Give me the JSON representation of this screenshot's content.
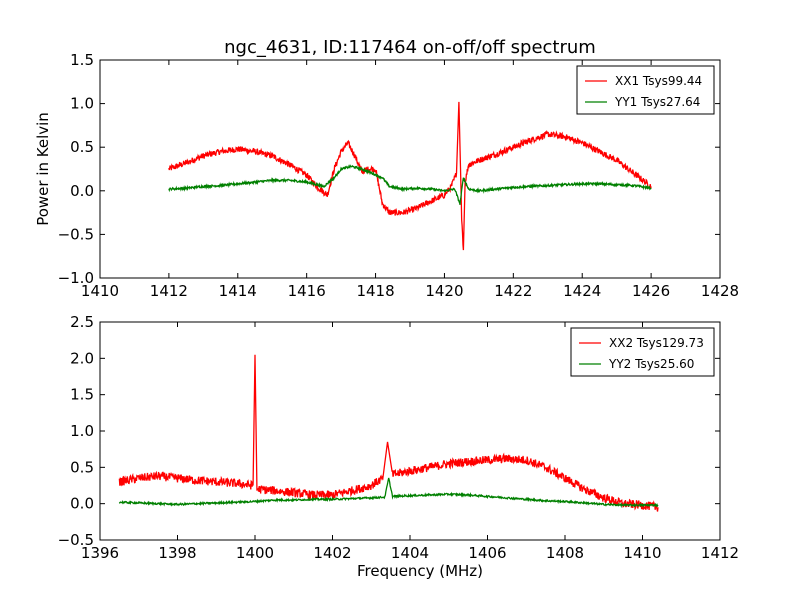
{
  "figure": {
    "title": "ngc_4631, ID:117464 on-off/off spectrum"
  },
  "colors": {
    "xx": "#ff0000",
    "yy": "#008000",
    "axis": "#000000",
    "background": "#ffffff"
  },
  "chart_data": [
    {
      "type": "line",
      "title": "ngc_4631, ID:117464 on-off/off spectrum",
      "xlabel": "",
      "ylabel": "Power in Kelvin",
      "xlim": [
        1410,
        1428
      ],
      "ylim": [
        -1.0,
        1.5
      ],
      "xticks": [
        1410,
        1412,
        1414,
        1416,
        1418,
        1420,
        1422,
        1424,
        1426,
        1428
      ],
      "xtick_labels": [
        "1410",
        "1412",
        "1414",
        "1416",
        "1418",
        "1420",
        "1422",
        "1424",
        "1426",
        "1428"
      ],
      "yticks": [
        -1.0,
        -0.5,
        0.0,
        0.5,
        1.0,
        1.5
      ],
      "ytick_labels": [
        "−1.0",
        "−0.5",
        "0.0",
        "0.5",
        "1.0",
        "1.5"
      ],
      "grid": false,
      "legend_position": "top-right",
      "series": [
        {
          "name": "XX1 Tsys99.44",
          "color": "#ff0000",
          "x": [
            1412.0,
            1412.5,
            1413.0,
            1413.5,
            1414.0,
            1414.5,
            1415.0,
            1415.5,
            1416.0,
            1416.3,
            1416.6,
            1416.8,
            1417.0,
            1417.2,
            1417.4,
            1417.6,
            1417.8,
            1418.0,
            1418.2,
            1418.4,
            1418.8,
            1419.2,
            1419.6,
            1420.0,
            1420.2,
            1420.35,
            1420.42,
            1420.5,
            1420.55,
            1420.6,
            1420.7,
            1421.0,
            1421.5,
            1422.0,
            1422.5,
            1423.0,
            1423.5,
            1424.0,
            1424.5,
            1425.0,
            1425.5,
            1426.0
          ],
          "y": [
            0.25,
            0.32,
            0.4,
            0.45,
            0.48,
            0.45,
            0.4,
            0.3,
            0.18,
            0.05,
            -0.05,
            0.25,
            0.45,
            0.55,
            0.4,
            0.22,
            0.25,
            0.25,
            -0.15,
            -0.25,
            -0.25,
            -0.2,
            -0.12,
            -0.05,
            0.05,
            0.2,
            1.02,
            -0.3,
            -0.68,
            0.1,
            0.3,
            0.35,
            0.42,
            0.5,
            0.58,
            0.65,
            0.62,
            0.55,
            0.45,
            0.35,
            0.2,
            0.05
          ]
        },
        {
          "name": "YY1 Tsys27.64",
          "color": "#008000",
          "x": [
            1412.0,
            1412.5,
            1413.0,
            1413.5,
            1414.0,
            1414.5,
            1415.0,
            1415.5,
            1416.0,
            1416.5,
            1416.8,
            1417.0,
            1417.3,
            1417.6,
            1417.9,
            1418.2,
            1418.4,
            1418.8,
            1419.2,
            1419.6,
            1420.0,
            1420.3,
            1420.45,
            1420.55,
            1420.7,
            1421.0,
            1421.5,
            1422.0,
            1422.5,
            1423.0,
            1423.5,
            1424.0,
            1424.5,
            1425.0,
            1425.5,
            1426.0
          ],
          "y": [
            0.02,
            0.03,
            0.05,
            0.06,
            0.08,
            0.1,
            0.12,
            0.12,
            0.1,
            0.05,
            0.15,
            0.25,
            0.28,
            0.25,
            0.2,
            0.15,
            0.05,
            0.02,
            0.03,
            0.02,
            0.0,
            0.02,
            -0.15,
            0.15,
            0.02,
            0.0,
            0.02,
            0.04,
            0.05,
            0.06,
            0.07,
            0.08,
            0.08,
            0.07,
            0.06,
            0.03
          ]
        }
      ]
    },
    {
      "type": "line",
      "title": "",
      "xlabel": "Frequency (MHz)",
      "ylabel": "",
      "xlim": [
        1396,
        1412
      ],
      "ylim": [
        -0.5,
        2.5
      ],
      "xticks": [
        1396,
        1398,
        1400,
        1402,
        1404,
        1406,
        1408,
        1410,
        1412
      ],
      "xtick_labels": [
        "1396",
        "1398",
        "1400",
        "1402",
        "1404",
        "1406",
        "1408",
        "1410",
        "1412"
      ],
      "yticks": [
        -0.5,
        0.0,
        0.5,
        1.0,
        1.5,
        2.0,
        2.5
      ],
      "ytick_labels": [
        "−0.5",
        "0.0",
        "0.5",
        "1.0",
        "1.5",
        "2.0",
        "2.5"
      ],
      "grid": false,
      "legend_position": "top-right",
      "series": [
        {
          "name": "XX2 Tsys129.73",
          "color": "#ff0000",
          "x": [
            1396.5,
            1397.0,
            1397.5,
            1398.0,
            1398.5,
            1399.0,
            1399.5,
            1399.95,
            1400.0,
            1400.05,
            1400.5,
            1401.0,
            1401.5,
            1402.0,
            1402.5,
            1403.0,
            1403.3,
            1403.42,
            1403.55,
            1404.0,
            1404.5,
            1405.0,
            1405.5,
            1406.0,
            1406.5,
            1407.0,
            1407.5,
            1408.0,
            1408.5,
            1409.0,
            1409.5,
            1410.0,
            1410.4
          ],
          "y": [
            0.3,
            0.35,
            0.38,
            0.35,
            0.32,
            0.3,
            0.28,
            0.25,
            2.05,
            0.2,
            0.18,
            0.15,
            0.12,
            0.12,
            0.18,
            0.25,
            0.35,
            0.85,
            0.4,
            0.45,
            0.5,
            0.55,
            0.58,
            0.6,
            0.62,
            0.6,
            0.5,
            0.35,
            0.2,
            0.08,
            0.0,
            -0.02,
            -0.05
          ]
        },
        {
          "name": "YY2 Tsys25.60",
          "color": "#008000",
          "x": [
            1396.5,
            1397.0,
            1397.5,
            1398.0,
            1398.5,
            1399.0,
            1399.5,
            1400.0,
            1400.5,
            1401.0,
            1401.5,
            1402.0,
            1402.5,
            1403.0,
            1403.35,
            1403.45,
            1403.55,
            1404.0,
            1404.5,
            1405.0,
            1405.5,
            1406.0,
            1406.5,
            1407.0,
            1407.5,
            1408.0,
            1408.5,
            1409.0,
            1409.5,
            1410.0,
            1410.4
          ],
          "y": [
            0.02,
            0.01,
            0.0,
            -0.01,
            0.0,
            0.01,
            0.02,
            0.03,
            0.05,
            0.05,
            0.06,
            0.06,
            0.07,
            0.08,
            0.09,
            0.35,
            0.1,
            0.11,
            0.12,
            0.13,
            0.12,
            0.1,
            0.08,
            0.06,
            0.04,
            0.03,
            0.01,
            -0.01,
            -0.02,
            -0.02,
            -0.02
          ]
        }
      ]
    }
  ]
}
